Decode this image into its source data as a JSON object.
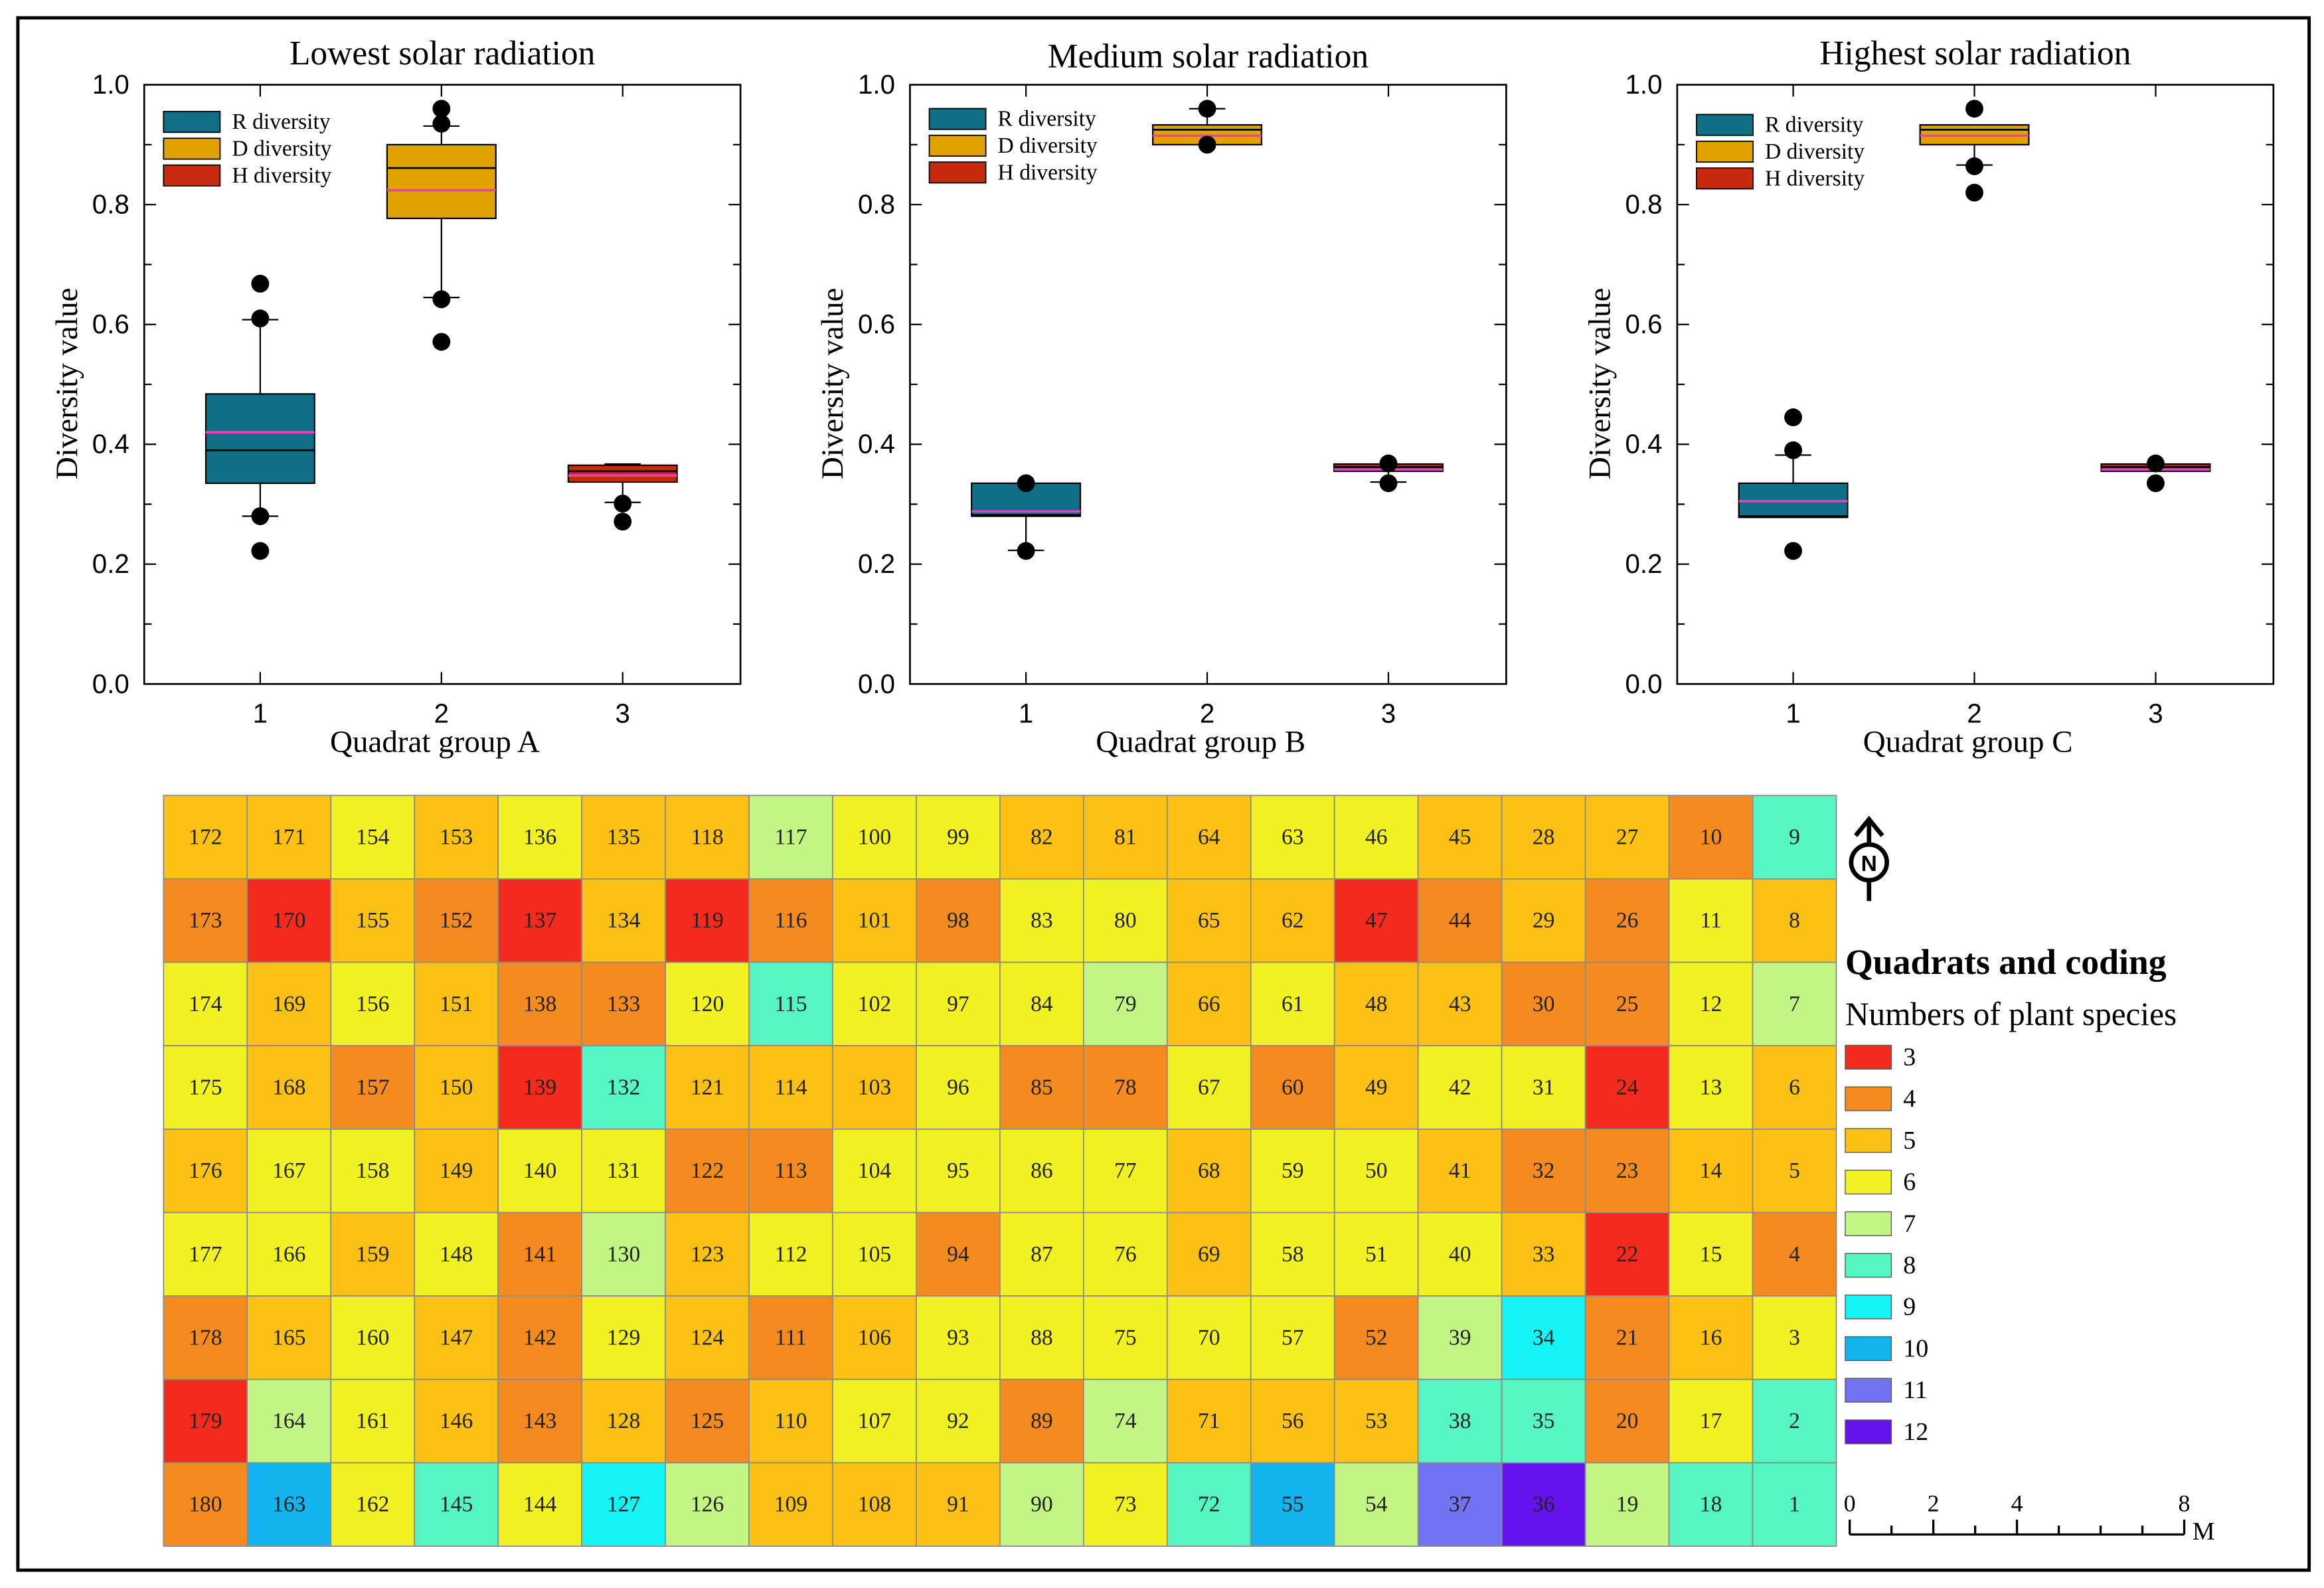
{
  "colors": {
    "series": [
      "#0f6f86",
      "#e1a200",
      "#c82a0f"
    ],
    "median": "#000000",
    "mean": "#e83fc0",
    "outlier": "#000000",
    "grid_line": "#8c8c8c"
  },
  "chart_data": [
    {
      "type": "box",
      "title": "Lowest solar radiation",
      "xlabel": "Quadrat group A",
      "ylabel": "Diversity value",
      "xlim": [
        0.36,
        3.65
      ],
      "ylim": [
        0,
        1
      ],
      "yticks": [
        "0.0",
        "0.2",
        "0.4",
        "0.6",
        "0.8",
        "1.0"
      ],
      "categories": [
        "1",
        "2",
        "3"
      ],
      "legend": {
        "position": "top-left",
        "entries": [
          "R diversity",
          "D diversity",
          "H diversity"
        ]
      },
      "boxes": [
        {
          "q1": 0.335,
          "median": 0.39,
          "mean": 0.42,
          "q3": 0.484,
          "whisker_low": 0.28,
          "whisker_high": 0.608,
          "outliers": [
            0.668,
            0.61,
            0.28,
            0.222
          ]
        },
        {
          "q1": 0.777,
          "median": 0.861,
          "mean": 0.824,
          "q3": 0.9,
          "whisker_low": 0.645,
          "whisker_high": 0.931,
          "outliers": [
            0.96,
            0.935,
            0.642,
            0.571
          ]
        },
        {
          "q1": 0.337,
          "median": 0.355,
          "mean": 0.348,
          "q3": 0.365,
          "whisker_low": 0.303,
          "whisker_high": 0.367,
          "outliers": [
            0.301,
            0.271
          ]
        }
      ]
    },
    {
      "type": "box",
      "title": "Medium solar radiation",
      "xlabel": "Quadrat group B",
      "ylabel": "Diversity value",
      "xlim": [
        0.36,
        3.65
      ],
      "ylim": [
        0,
        1
      ],
      "yticks": [
        "0.0",
        "0.2",
        "0.4",
        "0.6",
        "0.8",
        "1.0"
      ],
      "categories": [
        "1",
        "2",
        "3"
      ],
      "legend": {
        "position": "top-left",
        "entries": [
          "R diversity",
          "D diversity",
          "H diversity"
        ]
      },
      "boxes": [
        {
          "q1": 0.28,
          "median": 0.282,
          "mean": 0.288,
          "q3": 0.335,
          "whisker_low": 0.223,
          "whisker_high": 0.335,
          "outliers": [
            0.335,
            0.222
          ]
        },
        {
          "q1": 0.9,
          "median": 0.925,
          "mean": 0.915,
          "q3": 0.933,
          "whisker_low": 0.9,
          "whisker_high": 0.96,
          "outliers": [
            0.96,
            0.9
          ]
        },
        {
          "q1": 0.355,
          "median": 0.362,
          "mean": 0.358,
          "q3": 0.367,
          "whisker_low": 0.337,
          "whisker_high": 0.367,
          "outliers": [
            0.368,
            0.335
          ]
        }
      ]
    },
    {
      "type": "box",
      "title": "Highest solar radiation",
      "xlabel": "Quadrat group C",
      "ylabel": "Diversity value",
      "xlim": [
        0.36,
        3.65
      ],
      "ylim": [
        0,
        1
      ],
      "yticks": [
        "0.0",
        "0.2",
        "0.4",
        "0.6",
        "0.8",
        "1.0"
      ],
      "categories": [
        "1",
        "2",
        "3"
      ],
      "legend": {
        "position": "top-left",
        "entries": [
          "R diversity",
          "D diversity",
          "H diversity"
        ]
      },
      "boxes": [
        {
          "q1": 0.278,
          "median": 0.28,
          "mean": 0.305,
          "q3": 0.335,
          "whisker_low": 0.278,
          "whisker_high": 0.382,
          "outliers": [
            0.445,
            0.39,
            0.222
          ]
        },
        {
          "q1": 0.9,
          "median": 0.925,
          "mean": 0.915,
          "q3": 0.933,
          "whisker_low": 0.866,
          "whisker_high": 0.933,
          "outliers": [
            0.96,
            0.864,
            0.82
          ]
        },
        {
          "q1": 0.355,
          "median": 0.362,
          "mean": 0.358,
          "q3": 0.367,
          "whisker_low": 0.355,
          "whisker_high": 0.367,
          "outliers": [
            0.368,
            0.335
          ]
        }
      ]
    },
    {
      "type": "heatmap",
      "title": "Quadrats and coding",
      "subtitle": "Numbers of plant species",
      "north_label": "N",
      "codes": [
        [
          172,
          171,
          154,
          153,
          136,
          135,
          118,
          117,
          100,
          99,
          82,
          81,
          64,
          63,
          46,
          45,
          28,
          27,
          10,
          9
        ],
        [
          173,
          170,
          155,
          152,
          137,
          134,
          119,
          116,
          101,
          98,
          83,
          80,
          65,
          62,
          47,
          44,
          29,
          26,
          11,
          8
        ],
        [
          174,
          169,
          156,
          151,
          138,
          133,
          120,
          115,
          102,
          97,
          84,
          79,
          66,
          61,
          48,
          43,
          30,
          25,
          12,
          7
        ],
        [
          175,
          168,
          157,
          150,
          139,
          132,
          121,
          114,
          103,
          96,
          85,
          78,
          67,
          60,
          49,
          42,
          31,
          24,
          13,
          6
        ],
        [
          176,
          167,
          158,
          149,
          140,
          131,
          122,
          113,
          104,
          95,
          86,
          77,
          68,
          59,
          50,
          41,
          32,
          23,
          14,
          5
        ],
        [
          177,
          166,
          159,
          148,
          141,
          130,
          123,
          112,
          105,
          94,
          87,
          76,
          69,
          58,
          51,
          40,
          33,
          22,
          15,
          4
        ],
        [
          178,
          165,
          160,
          147,
          142,
          129,
          124,
          111,
          106,
          93,
          88,
          75,
          70,
          57,
          52,
          39,
          34,
          21,
          16,
          3
        ],
        [
          179,
          164,
          161,
          146,
          143,
          128,
          125,
          110,
          107,
          92,
          89,
          74,
          71,
          56,
          53,
          38,
          35,
          20,
          17,
          2
        ],
        [
          180,
          163,
          162,
          145,
          144,
          127,
          126,
          109,
          108,
          91,
          90,
          73,
          72,
          55,
          54,
          37,
          36,
          19,
          18,
          1
        ]
      ],
      "species": [
        [
          5,
          5,
          6,
          5,
          6,
          5,
          5,
          7,
          6,
          6,
          5,
          5,
          5,
          6,
          6,
          5,
          5,
          5,
          4,
          8
        ],
        [
          4,
          3,
          5,
          4,
          3,
          5,
          3,
          4,
          5,
          4,
          6,
          6,
          5,
          5,
          3,
          4,
          5,
          4,
          6,
          5
        ],
        [
          6,
          5,
          6,
          5,
          4,
          4,
          6,
          8,
          6,
          6,
          6,
          7,
          5,
          6,
          5,
          5,
          4,
          4,
          6,
          7
        ],
        [
          6,
          5,
          4,
          5,
          3,
          8,
          5,
          5,
          5,
          6,
          4,
          4,
          6,
          4,
          5,
          6,
          6,
          3,
          6,
          5
        ],
        [
          5,
          6,
          6,
          5,
          6,
          6,
          4,
          4,
          6,
          6,
          6,
          6,
          5,
          6,
          6,
          5,
          4,
          4,
          5,
          5
        ],
        [
          6,
          6,
          5,
          6,
          4,
          7,
          5,
          6,
          6,
          4,
          6,
          6,
          5,
          6,
          6,
          6,
          5,
          3,
          6,
          4
        ],
        [
          4,
          5,
          6,
          5,
          4,
          6,
          5,
          4,
          5,
          6,
          6,
          6,
          6,
          6,
          4,
          7,
          9,
          4,
          5,
          6
        ],
        [
          3,
          7,
          6,
          5,
          4,
          5,
          4,
          5,
          6,
          6,
          4,
          7,
          5,
          5,
          5,
          8,
          8,
          4,
          6,
          8
        ],
        [
          4,
          10,
          6,
          8,
          6,
          9,
          7,
          5,
          5,
          5,
          7,
          6,
          8,
          10,
          7,
          11,
          12,
          7,
          8,
          8
        ]
      ],
      "legend_levels": [
        3,
        4,
        5,
        6,
        7,
        8,
        9,
        10,
        11,
        12
      ],
      "level_colors": [
        "#f42a1d",
        "#f58b1f",
        "#fcc113",
        "#f2f222",
        "#c2f584",
        "#56f5c4",
        "#15f4f4",
        "#12b3ef",
        "#7272f4",
        "#6412ee"
      ],
      "scale_bar": {
        "tick_labels": [
          "0",
          "2",
          "4",
          "8"
        ],
        "tick_values": [
          0,
          2,
          4,
          8
        ],
        "max": 8,
        "unit": "M"
      }
    }
  ]
}
